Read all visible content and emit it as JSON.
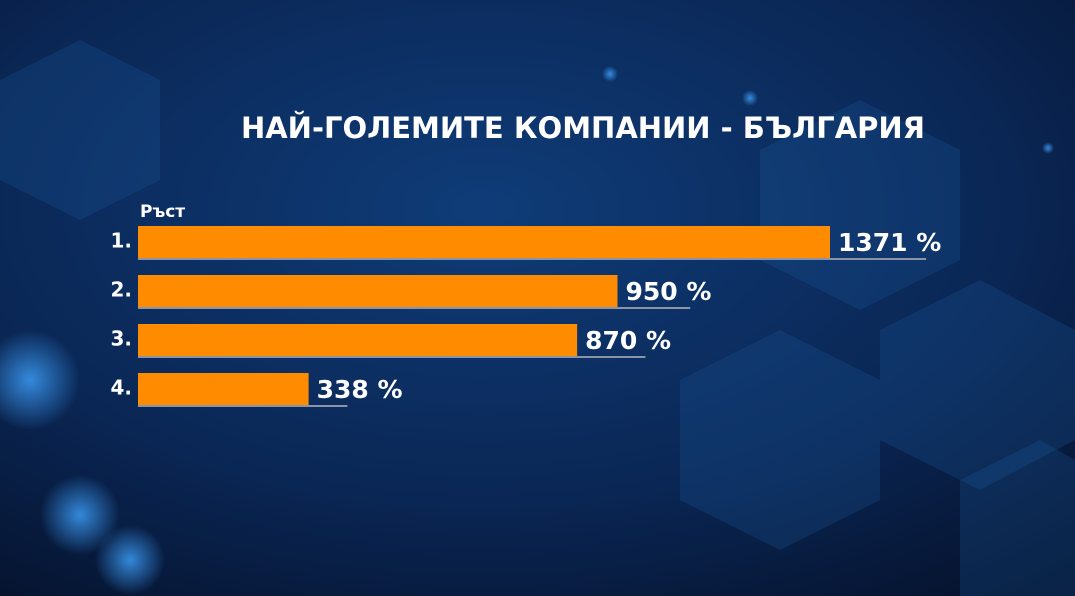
{
  "chart_data": {
    "type": "bar",
    "orientation": "horizontal",
    "title": "НАЙ-ГОЛЕМИТЕ КОМПАНИИ - БЪЛГАРИЯ",
    "axis_label": "Ръст",
    "categories": [
      "1.",
      "2.",
      "3.",
      "4."
    ],
    "values": [
      1371,
      950,
      870,
      338
    ],
    "value_labels": [
      "1371 %",
      "950 %",
      "870 %",
      "338 %"
    ],
    "color": "#ff8c00"
  }
}
